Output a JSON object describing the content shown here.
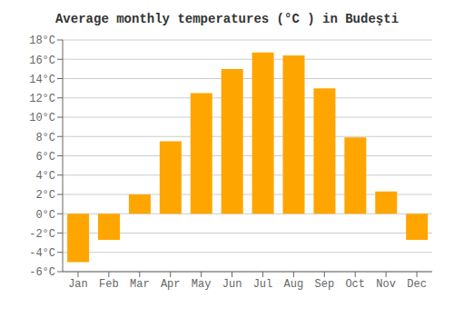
{
  "chart_data": {
    "type": "bar",
    "title": "Average monthly temperatures (°C ) in Budeşti",
    "categories": [
      "Jan",
      "Feb",
      "Mar",
      "Apr",
      "May",
      "Jun",
      "Jul",
      "Aug",
      "Sep",
      "Oct",
      "Nov",
      "Dec"
    ],
    "values": [
      -5.0,
      -2.7,
      2.0,
      7.5,
      12.5,
      15.0,
      16.7,
      16.4,
      13.0,
      7.9,
      2.3,
      -2.7
    ],
    "color": "#FFA500",
    "ylim": [
      -6,
      18
    ],
    "yticks": [
      {
        "value": -6,
        "label": "-6°C"
      },
      {
        "value": -4,
        "label": "-4°C"
      },
      {
        "value": -2,
        "label": "-2°C"
      },
      {
        "value": 0,
        "label": "0°C"
      },
      {
        "value": 2,
        "label": "2°C"
      },
      {
        "value": 4,
        "label": "4°C"
      },
      {
        "value": 6,
        "label": "6°C"
      },
      {
        "value": 8,
        "label": "8°C"
      },
      {
        "value": 10,
        "label": "10°C"
      },
      {
        "value": 12,
        "label": "12°C"
      },
      {
        "value": 14,
        "label": "14°C"
      },
      {
        "value": 16,
        "label": "16°C"
      },
      {
        "value": 18,
        "label": "18°C"
      }
    ],
    "grid": true
  }
}
